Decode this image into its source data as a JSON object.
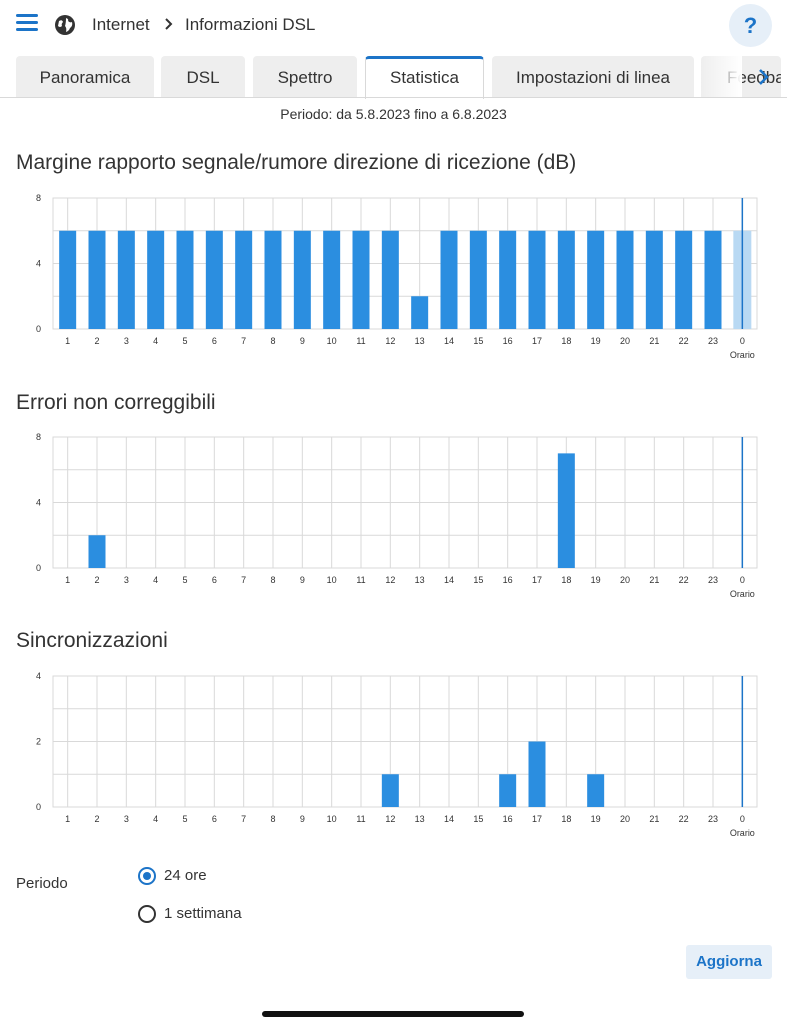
{
  "breadcrumb": {
    "section": "Internet",
    "page": "Informazioni DSL"
  },
  "help_label": "?",
  "tabs": [
    {
      "label": "Panoramica",
      "active": false
    },
    {
      "label": "DSL",
      "active": false
    },
    {
      "label": "Spettro",
      "active": false
    },
    {
      "label": "Statistica",
      "active": true
    },
    {
      "label": "Impostazioni di linea",
      "active": false
    },
    {
      "label": "Feedback",
      "active": false
    }
  ],
  "period_text": "Periodo: da 5.8.2023 fino a 6.8.2023",
  "colors": {
    "accent": "#1c74c8",
    "bar": "#2b8ee0",
    "bar_current": "#b9d9f3",
    "grid": "#d9d9d9"
  },
  "chart_data": [
    {
      "type": "bar",
      "title": "Margine rapporto segnale/rumore direzione di ricezione (dB)",
      "categories": [
        "1",
        "2",
        "3",
        "4",
        "5",
        "6",
        "7",
        "8",
        "9",
        "10",
        "11",
        "12",
        "13",
        "14",
        "15",
        "16",
        "17",
        "18",
        "19",
        "20",
        "21",
        "22",
        "23",
        "0"
      ],
      "values": [
        6,
        6,
        6,
        6,
        6,
        6,
        6,
        6,
        6,
        6,
        6,
        6,
        2,
        6,
        6,
        6,
        6,
        6,
        6,
        6,
        6,
        6,
        6,
        6
      ],
      "current_index": 23,
      "yticks": [
        0,
        4,
        8
      ],
      "ylim": [
        0,
        8
      ],
      "xlabel": "Orario",
      "ylabel": ""
    },
    {
      "type": "bar",
      "title": "Errori non correggibili",
      "categories": [
        "1",
        "2",
        "3",
        "4",
        "5",
        "6",
        "7",
        "8",
        "9",
        "10",
        "11",
        "12",
        "13",
        "14",
        "15",
        "16",
        "17",
        "18",
        "19",
        "20",
        "21",
        "22",
        "23",
        "0"
      ],
      "values": [
        0,
        2,
        0,
        0,
        0,
        0,
        0,
        0,
        0,
        0,
        0,
        0,
        0,
        0,
        0,
        0,
        0,
        7,
        0,
        0,
        0,
        0,
        0,
        0
      ],
      "current_index": 23,
      "yticks": [
        0,
        4,
        8
      ],
      "ylim": [
        0,
        8
      ],
      "xlabel": "Orario",
      "ylabel": ""
    },
    {
      "type": "bar",
      "title": "Sincronizzazioni",
      "categories": [
        "1",
        "2",
        "3",
        "4",
        "5",
        "6",
        "7",
        "8",
        "9",
        "10",
        "11",
        "12",
        "13",
        "14",
        "15",
        "16",
        "17",
        "18",
        "19",
        "20",
        "21",
        "22",
        "23",
        "0"
      ],
      "values": [
        0,
        0,
        0,
        0,
        0,
        0,
        0,
        0,
        0,
        0,
        0,
        1,
        0,
        0,
        0,
        1,
        2,
        0,
        1,
        0,
        0,
        0,
        0,
        0
      ],
      "current_index": 23,
      "yticks": [
        0,
        2,
        4
      ],
      "ylim": [
        0,
        4
      ],
      "xlabel": "Orario",
      "ylabel": ""
    }
  ],
  "period_form": {
    "label": "Periodo",
    "options": [
      {
        "label": "24 ore",
        "checked": true
      },
      {
        "label": "1 settimana",
        "checked": false
      }
    ]
  },
  "refresh_label": "Aggiorna"
}
